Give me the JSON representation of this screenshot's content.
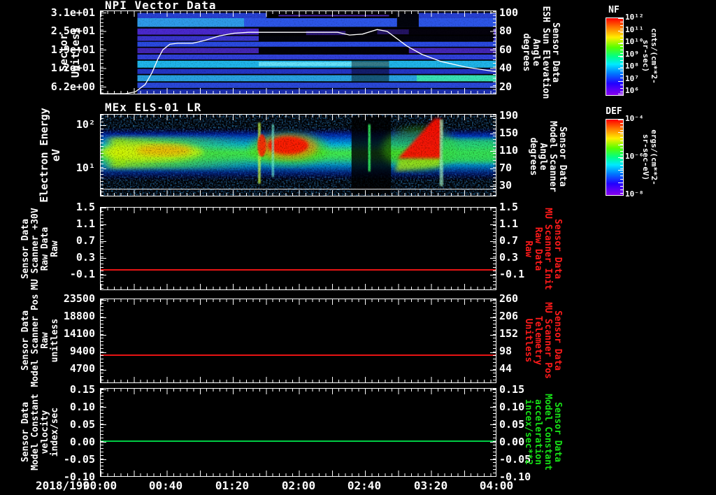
{
  "header": {
    "date_label": "2018/199"
  },
  "x_axis": {
    "tick_labels": [
      "00:00",
      "00:40",
      "01:20",
      "02:00",
      "02:40",
      "03:20",
      "04:00"
    ]
  },
  "panels": [
    {
      "title": "NPI Vector Data",
      "left_axis": {
        "label": "Sector\nUnitless",
        "ticks": [
          "3.1e+01",
          "2.5e+01",
          "1.9e+01",
          "1.2e+01",
          "6.2e+00"
        ]
      },
      "right_axis": {
        "label": "Sensor Data\nESH Sun Elevation\nAngle\ndegrees",
        "ticks": [
          "100",
          "80",
          "60",
          "40",
          "20"
        ]
      },
      "colorbar": {
        "title": "NF",
        "ticks": [
          "10¹²",
          "10¹¹",
          "10¹⁰",
          "10⁹",
          "10⁸",
          "10⁷",
          "10⁶"
        ],
        "units": "cnts/(cm**2-sr-sec)"
      }
    },
    {
      "title": "MEx ELS-01 LR",
      "left_axis": {
        "label": "Electron Energy\neV",
        "ticks": [
          "10²",
          "10¹"
        ]
      },
      "right_axis": {
        "label": "Sensor Data\nModel Scanner\nAngle\ndegrees",
        "ticks": [
          "190",
          "150",
          "110",
          "70",
          "30"
        ]
      },
      "colorbar": {
        "title": "DEF",
        "ticks": [
          "10⁻⁴",
          "10⁻⁶",
          "10⁻⁸"
        ],
        "units": "ergs/(cm**2-sr-sec-eV)"
      }
    },
    {
      "left_axis": {
        "label": "Sensor Data\nMU Scanner +30V\nRaw Data\nRaw",
        "ticks": [
          "1.5",
          "1.1",
          "0.7",
          "0.3",
          "-0.1"
        ]
      },
      "right_axis": {
        "label": "Sensor Data\nMU Scanner Init\nRaw Data\nRaw",
        "ticks": [
          "1.5",
          "1.1",
          "0.7",
          "0.3",
          "-0.1"
        ]
      }
    },
    {
      "left_axis": {
        "label": "Sensor Data\nModel Scanner Pos\nRaw\nunitless",
        "ticks": [
          "23500",
          "18800",
          "14100",
          "9400",
          "4700"
        ]
      },
      "right_axis": {
        "label": "Sensor Data\nMU Scanner Pos\nTelemetry\nUnitless",
        "ticks": [
          "260",
          "206",
          "152",
          "98",
          "44"
        ]
      }
    },
    {
      "left_axis": {
        "label": "Sensor Data\nModel Constant\nvelocity\nindex/sec",
        "ticks": [
          "0.15",
          "0.10",
          "0.05",
          "0.00",
          "-0.05",
          "-0.10"
        ]
      },
      "right_axis": {
        "label": "Sensor Data\nModel Constant\nacceleration\nincex/sec**2",
        "ticks": [
          "0.15",
          "0.10",
          "0.05",
          "0.00",
          "-0.05",
          "-0.10"
        ]
      }
    }
  ],
  "colors": {
    "background": "#000000",
    "axis": "#ffffff",
    "red_series": "#e81414",
    "green_series": "#00cc44",
    "red_label": "#ff1a1a",
    "green_label": "#16e016"
  },
  "chart_data": [
    {
      "type": "spectrogram",
      "title": "NPI Vector Data",
      "y_axis": "Sector (Unitless)",
      "y_ticks": [
        31,
        25,
        19,
        12,
        6.2
      ],
      "x_range_hours": [
        0,
        4
      ],
      "colorbar": {
        "name": "NF",
        "units": "cnts/(cm**2-sr-sec)",
        "log10_range": [
          6,
          12
        ]
      },
      "overlay_line": {
        "name": "ESH Sun Elevation Angle",
        "units": "degrees",
        "color": "#ffffff",
        "axis_top_value": 102,
        "axis_bottom_value": 12,
        "points": [
          [
            0,
            12
          ],
          [
            0.25,
            12
          ],
          [
            0.35,
            14
          ],
          [
            0.45,
            22
          ],
          [
            0.52,
            35
          ],
          [
            0.58,
            50
          ],
          [
            0.63,
            60
          ],
          [
            0.7,
            66
          ],
          [
            0.78,
            67
          ],
          [
            0.93,
            67
          ],
          [
            1.05,
            70
          ],
          [
            1.2,
            75
          ],
          [
            1.35,
            78
          ],
          [
            1.5,
            79
          ],
          [
            2.4,
            79
          ],
          [
            2.52,
            76
          ],
          [
            2.65,
            77
          ],
          [
            2.8,
            82
          ],
          [
            2.9,
            80
          ],
          [
            3.0,
            72
          ],
          [
            3.1,
            64
          ],
          [
            3.25,
            55
          ],
          [
            3.45,
            47
          ],
          [
            3.7,
            41
          ],
          [
            4.0,
            36
          ]
        ]
      },
      "bands": [
        {
          "x": 0.093,
          "y": 0.02,
          "w": 0.907,
          "h": 0.065,
          "c": "#2740d0"
        },
        {
          "x": 0.42,
          "y": 0.02,
          "w": 0.33,
          "h": 0.065,
          "c": "#000000"
        },
        {
          "x": 0.45,
          "y": 0.045,
          "w": 0.28,
          "h": 0.018,
          "c": "#5a2ecc",
          "o": 0.8
        },
        {
          "x": 0.093,
          "y": 0.085,
          "w": 0.907,
          "h": 0.105,
          "c": "#2c55e6"
        },
        {
          "x": 0.093,
          "y": 0.085,
          "w": 0.27,
          "h": 0.105,
          "c": "#2e9ae8"
        },
        {
          "x": 0.75,
          "y": 0.015,
          "w": 0.055,
          "h": 0.175,
          "c": "#000000",
          "o": 0.95
        },
        {
          "x": 0.093,
          "y": 0.21,
          "w": 0.907,
          "h": 0.075,
          "c": "#4a28cc"
        },
        {
          "x": 0.093,
          "y": 0.3,
          "w": 0.907,
          "h": 0.06,
          "c": "#3a35cc"
        },
        {
          "x": 0.4,
          "y": 0.195,
          "w": 0.595,
          "h": 0.17,
          "c": "#000000",
          "o": 0.94
        },
        {
          "x": 0.52,
          "y": 0.24,
          "w": 0.1,
          "h": 0.05,
          "c": "#4a28cc",
          "o": 0.55
        },
        {
          "x": 0.7,
          "y": 0.22,
          "w": 0.08,
          "h": 0.06,
          "c": "#4a28cc",
          "o": 0.45
        },
        {
          "x": 0.093,
          "y": 0.37,
          "w": 0.907,
          "h": 0.06,
          "c": "#2a4ae0"
        },
        {
          "x": 0.093,
          "y": 0.445,
          "w": 0.907,
          "h": 0.065,
          "c": "#4326b4"
        },
        {
          "x": 0.4,
          "y": 0.44,
          "w": 0.38,
          "h": 0.075,
          "c": "#000000",
          "o": 0.96
        },
        {
          "x": 0.093,
          "y": 0.525,
          "w": 0.907,
          "h": 0.06,
          "c": "#3040d8"
        },
        {
          "x": 0.093,
          "y": 0.6,
          "w": 0.907,
          "h": 0.085,
          "c": "#1fb4e8"
        },
        {
          "x": 0.4,
          "y": 0.615,
          "w": 0.33,
          "h": 0.05,
          "c": "#7df0ff",
          "o": 0.75
        },
        {
          "x": 0.093,
          "y": 0.7,
          "w": 0.907,
          "h": 0.06,
          "c": "#2335c4"
        },
        {
          "x": 0.093,
          "y": 0.775,
          "w": 0.907,
          "h": 0.075,
          "c": "#28a0e0"
        },
        {
          "x": 0.8,
          "y": 0.775,
          "w": 0.2,
          "h": 0.075,
          "c": "#3ae8b0",
          "o": 0.9
        },
        {
          "x": 0.093,
          "y": 0.865,
          "w": 0.907,
          "h": 0.065,
          "c": "#2a48d8"
        },
        {
          "x": 0.093,
          "y": 0.945,
          "w": 0.907,
          "h": 0.055,
          "c": "#1c2fae"
        },
        {
          "x": 0.635,
          "y": 0.6,
          "w": 0.095,
          "h": 0.25,
          "c": "#000000",
          "o": 0.45
        }
      ]
    },
    {
      "type": "spectrogram",
      "title": "MEx ELS-01 LR",
      "y_axis": "Electron Energy (eV)",
      "y_scale": "log",
      "y_range_eV": [
        3,
        300
      ],
      "x_range_hours": [
        0,
        4
      ],
      "colorbar": {
        "name": "DEF",
        "units": "ergs/(cm**2-sr-sec-eV)",
        "log10_range": [
          -8,
          -4
        ]
      },
      "features": [
        {
          "s": "rect",
          "x": 0,
          "y": 0.18,
          "w": 1,
          "h": 0.62,
          "c": "url(#gBand)",
          "f": 2
        },
        {
          "s": "rect",
          "x": 0.005,
          "y": 0.28,
          "w": 0.4,
          "h": 0.38,
          "c": "url(#gLeft)",
          "f": 3
        },
        {
          "s": "ellipse",
          "cx": 0.13,
          "cy": 0.46,
          "rx": 0.13,
          "ry": 0.11,
          "c": "#e8f800",
          "o": 0.7,
          "f": 4
        },
        {
          "s": "ellipse",
          "cx": 0.16,
          "cy": 0.44,
          "rx": 0.07,
          "ry": 0.07,
          "c": "#ff9900",
          "o": 0.6,
          "f": 4
        },
        {
          "s": "ellipse",
          "cx": 0.475,
          "cy": 0.42,
          "rx": 0.1,
          "ry": 0.2,
          "c": "#55dd00",
          "o": 0.5,
          "f": 5
        },
        {
          "s": "ellipse",
          "cx": 0.475,
          "cy": 0.4,
          "rx": 0.075,
          "ry": 0.15,
          "c": "#ff8800",
          "o": 0.65,
          "f": 4
        },
        {
          "s": "ellipse",
          "cx": 0.474,
          "cy": 0.38,
          "rx": 0.052,
          "ry": 0.11,
          "c": "#ff1500",
          "o": 0.95,
          "f": 2
        },
        {
          "s": "rect",
          "x": 0.398,
          "y": 0.1,
          "w": 0.007,
          "h": 0.75,
          "c": "#ccff44",
          "o": 0.8,
          "f": 1
        },
        {
          "s": "ellipse",
          "cx": 0.408,
          "cy": 0.38,
          "rx": 0.011,
          "ry": 0.14,
          "c": "#ff2200",
          "o": 0.9,
          "f": 1
        },
        {
          "s": "rect",
          "x": 0.433,
          "y": 0.12,
          "w": 0.006,
          "h": 0.65,
          "c": "#77ffdd",
          "o": 0.7,
          "f": 1
        },
        {
          "s": "rect",
          "x": 0.635,
          "y": 0.02,
          "w": 0.1,
          "h": 0.96,
          "c": "#000000",
          "o": 0.82
        },
        {
          "s": "rect",
          "x": 0.677,
          "y": 0.12,
          "w": 0.006,
          "h": 0.58,
          "c": "#33ff66",
          "o": 0.95,
          "f": 1
        },
        {
          "s": "ellipse",
          "cx": 0.808,
          "cy": 0.42,
          "rx": 0.095,
          "ry": 0.26,
          "c": "#44cc00",
          "o": 0.45,
          "f": 5
        },
        {
          "s": "poly",
          "pts": [
            [
              0.745,
              0.7
            ],
            [
              0.755,
              0.55
            ],
            [
              0.86,
              0.52
            ],
            [
              0.86,
              0.64
            ]
          ],
          "c": "#bbee00",
          "o": 0.7,
          "f": 3
        },
        {
          "s": "poly",
          "pts": [
            [
              0.752,
              0.54
            ],
            [
              0.845,
              0.05
            ],
            [
              0.862,
              0.05
            ],
            [
              0.862,
              0.54
            ]
          ],
          "c": "#ff1100",
          "o": 0.95,
          "f": 2
        },
        {
          "s": "rect",
          "x": 0.858,
          "y": 0.06,
          "w": 0.009,
          "h": 0.82,
          "c": "#aaffcc",
          "o": 0.7,
          "f": 1
        },
        {
          "s": "rect",
          "x": 0.865,
          "y": 0.3,
          "w": 0.135,
          "h": 0.28,
          "c": "#33dd55",
          "o": 0.75,
          "f": 3
        }
      ]
    },
    {
      "type": "line",
      "label": "Sensor Data MU Scanner +30V Raw Data Raw",
      "line": {
        "value": 0.0,
        "ymin": -0.483,
        "ymax": 1.5,
        "color": "#e81414"
      }
    },
    {
      "type": "line",
      "label": "Sensor Data Model Scanner Pos Raw unitless",
      "line": {
        "value": 8400,
        "ymin": 750,
        "ymax": 23500,
        "color": "#e81414"
      }
    },
    {
      "type": "line",
      "label": "Sensor Data Model Constant velocity index/sec",
      "line": {
        "value": 0.0,
        "ymin": -0.104,
        "ymax": 0.15,
        "color": "#00cc44"
      }
    }
  ]
}
